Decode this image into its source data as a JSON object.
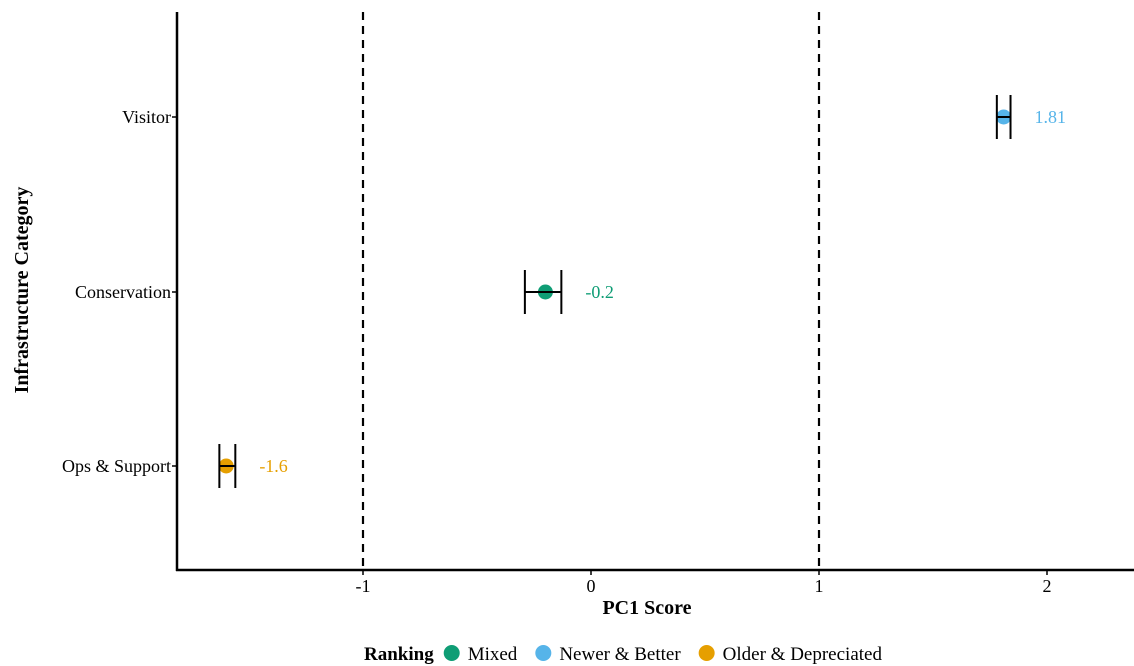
{
  "chart_data": {
    "type": "scatter",
    "title": "",
    "xlabel": "PC1 Score",
    "ylabel": "Infrastructure Category",
    "xlim": [
      -1.8,
      2.4
    ],
    "x_ticks": [
      -1,
      0,
      1,
      2
    ],
    "x_tick_labels": [
      "-1",
      "0",
      "1",
      "2"
    ],
    "categories": [
      "Visitor",
      "Conservation",
      "Ops & Support"
    ],
    "reference_lines_x": [
      -1,
      1
    ],
    "grid": false,
    "points": [
      {
        "category": "Visitor",
        "value": 1.81,
        "ci_low": 1.78,
        "ci_high": 1.84,
        "ranking": "Newer & Better",
        "label": "1.81"
      },
      {
        "category": "Conservation",
        "value": -0.2,
        "ci_low": -0.29,
        "ci_high": -0.13,
        "ranking": "Mixed",
        "label": "-0.2"
      },
      {
        "category": "Ops & Support",
        "value": -1.6,
        "ci_low": -1.63,
        "ci_high": -1.56,
        "ranking": "Older & Depreciated",
        "label": "-1.6"
      }
    ],
    "legend": {
      "title": "Ranking",
      "position": "bottom",
      "items": [
        {
          "name": "Mixed",
          "color": "#0f9d75"
        },
        {
          "name": "Newer & Better",
          "color": "#56b4e9"
        },
        {
          "name": "Older & Depreciated",
          "color": "#e69f00"
        }
      ]
    }
  }
}
